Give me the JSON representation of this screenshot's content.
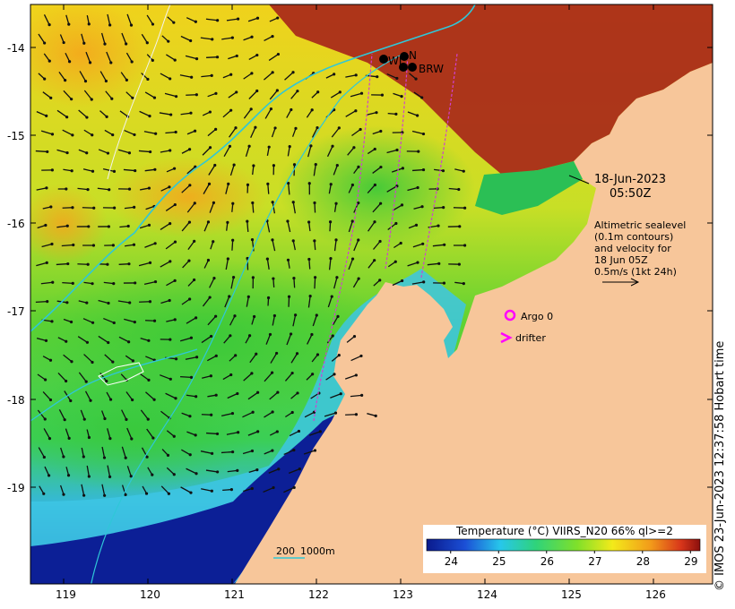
{
  "map": {
    "lat_ticks": [
      "-14",
      "-15",
      "-16",
      "-17",
      "-18",
      "-19"
    ],
    "lon_ticks": [
      "119",
      "120",
      "121",
      "122",
      "123",
      "124",
      "125",
      "126"
    ],
    "lat_range": [
      -20.1,
      -13.5
    ],
    "lon_range": [
      118.6,
      126.7
    ],
    "land_color": "#f7c69a",
    "ocean_description_colors": [
      "#0a1a8c",
      "#27c7ea",
      "#3fd23c",
      "#f3ea1a",
      "#f29a1a",
      "#9b1410"
    ]
  },
  "date_label": {
    "date": "18-Jun-2023",
    "time": "05:50Z"
  },
  "altimetry_note": {
    "line1": "Altimetric sealevel",
    "line2": "(0.1m contours)",
    "line3": "and velocity for",
    "line4": "18 Jun 05Z",
    "line5": "0.5m/s (1kt 24h)"
  },
  "legend": {
    "argo_label": "Argo 0",
    "drifter_label": "drifter",
    "marker_color": "#ff00ff"
  },
  "stations": [
    {
      "label": "WI"
    },
    {
      "label": "N"
    },
    {
      "label": "BRW"
    }
  ],
  "scale_bar": {
    "label1": "200",
    "label2": "1000m"
  },
  "colorbar": {
    "title": "Temperature (°C) VIIRS_N20 66% ql>=2",
    "ticks": [
      "24",
      "25",
      "26",
      "27",
      "28",
      "29"
    ],
    "range": [
      23.5,
      29.2
    ]
  },
  "copyright": "© IMOS 23-Jun-2023 12:37:58 Hobart time"
}
